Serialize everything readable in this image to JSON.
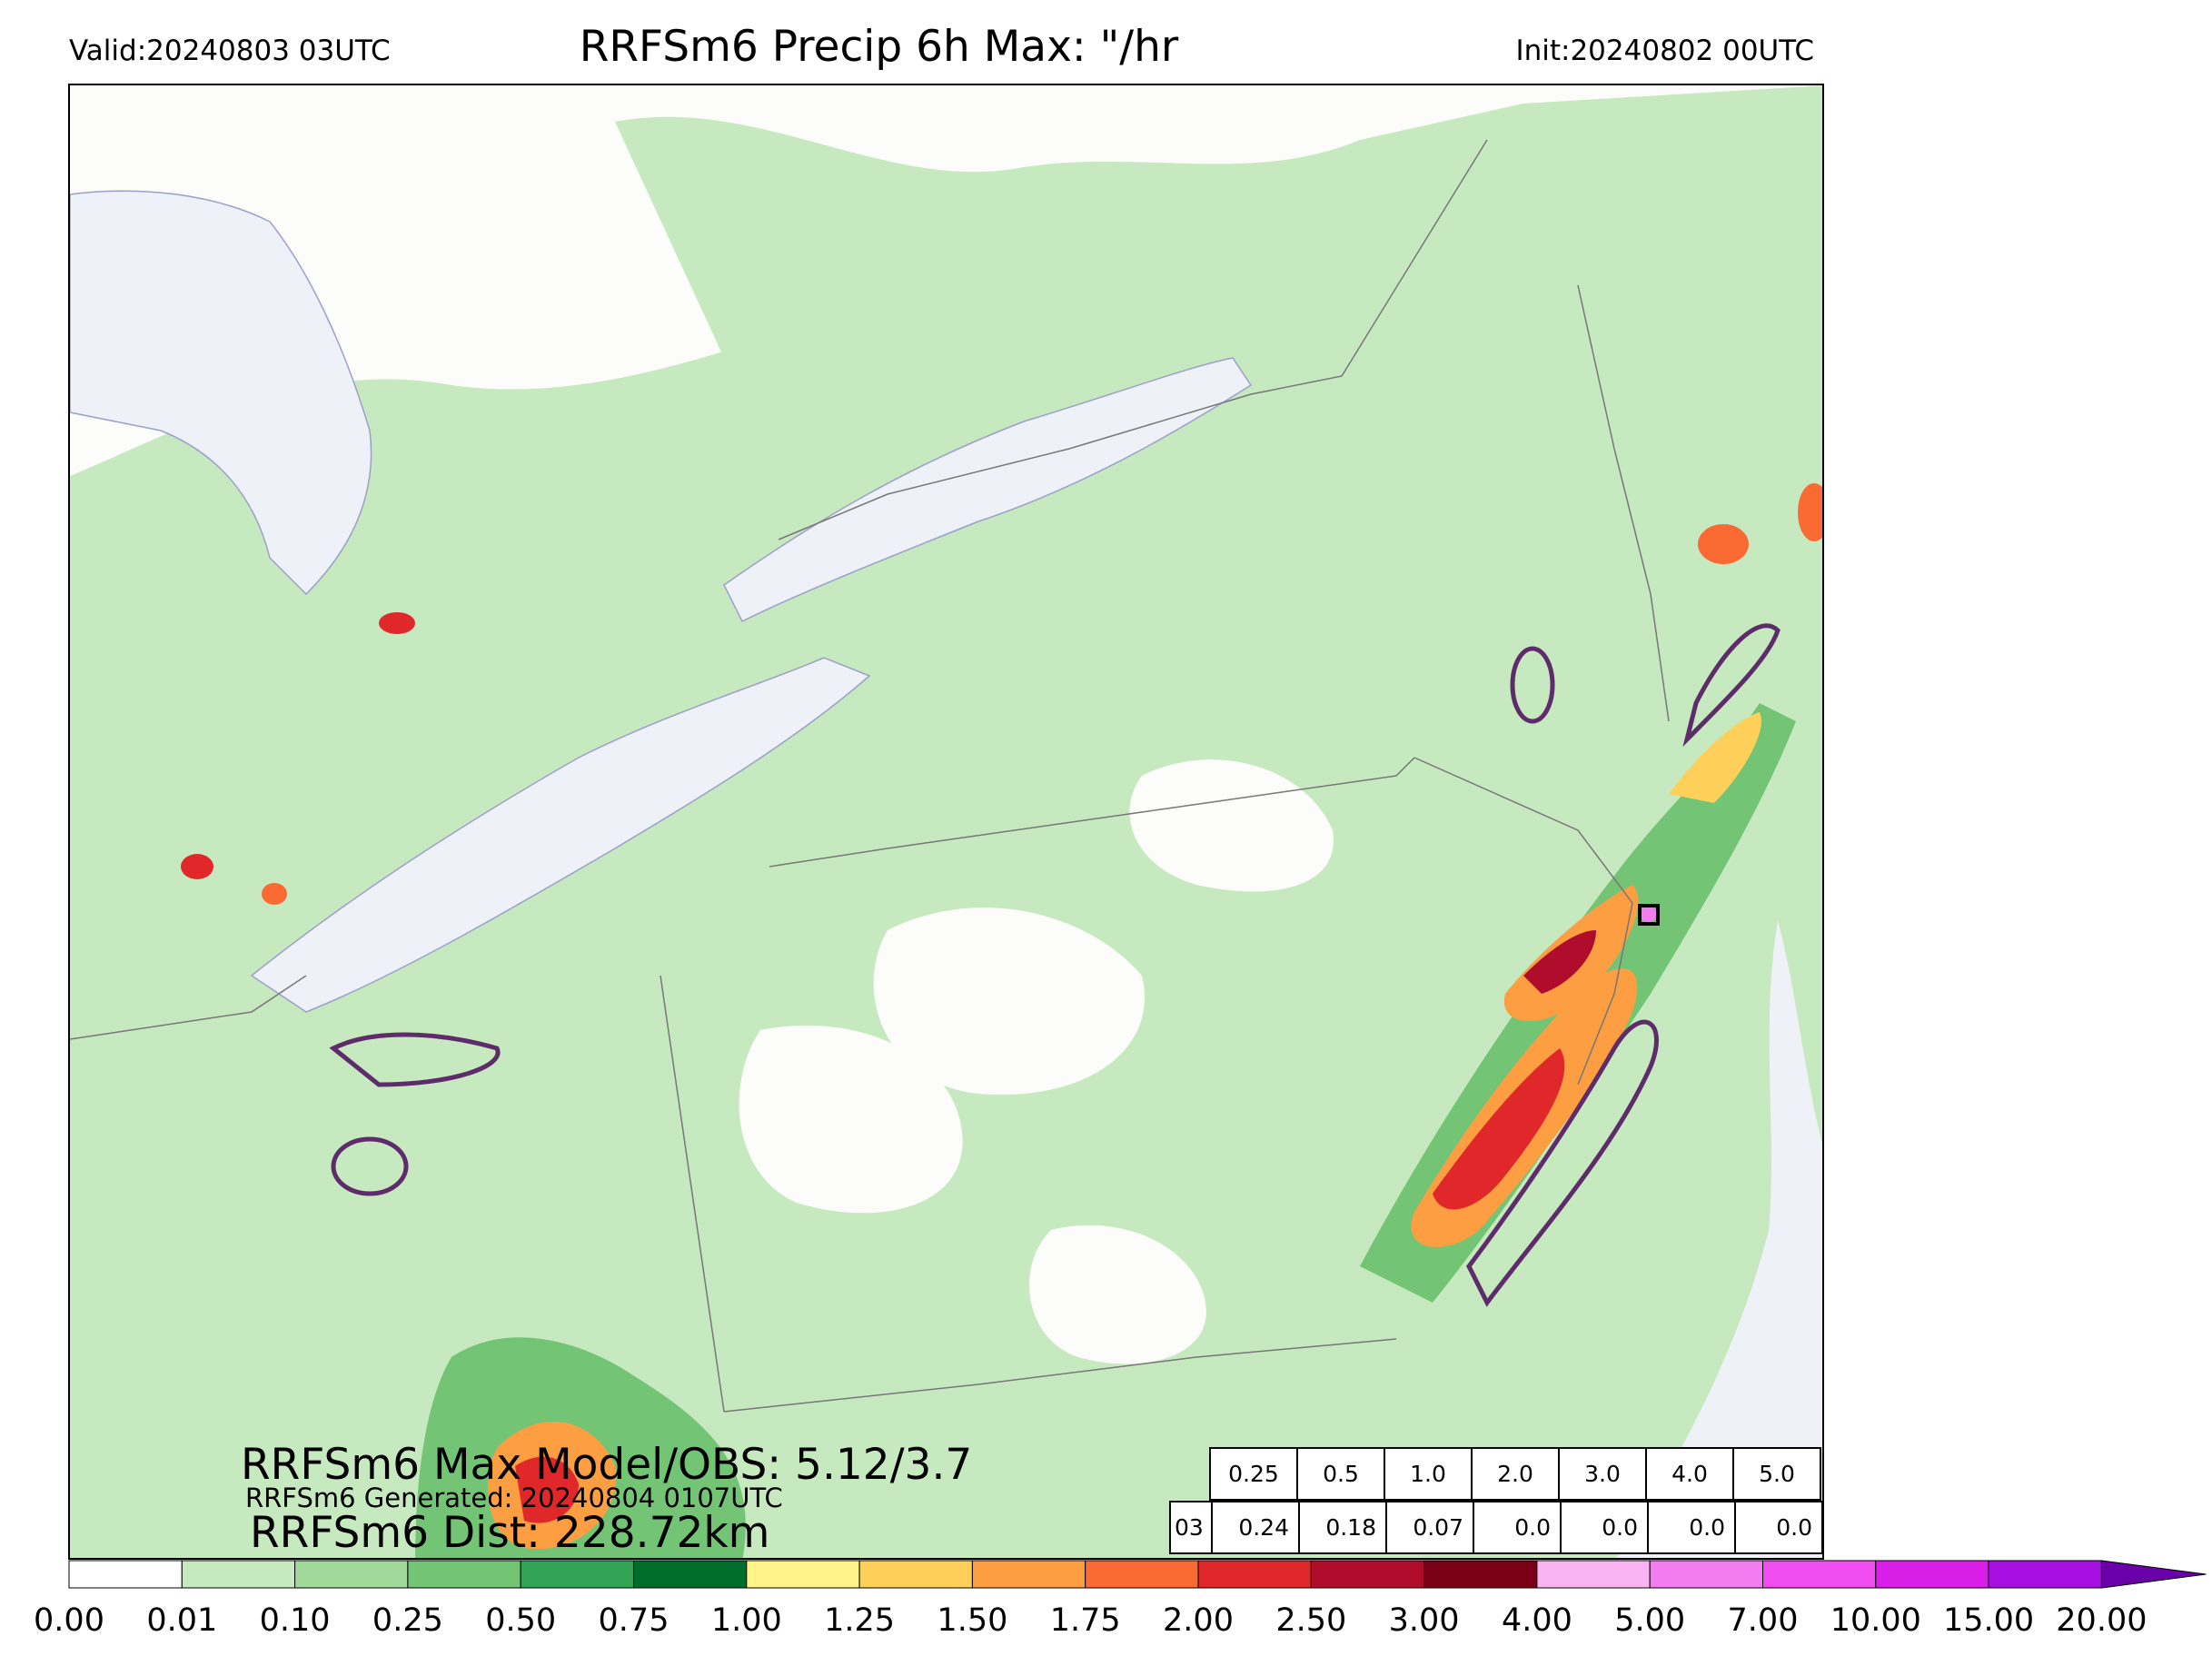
{
  "header": {
    "valid": "Valid:20240803 03UTC",
    "title": "RRFSm6 Precip 6h Max: \"/hr",
    "init": "Init:20240802 00UTC"
  },
  "overlay": {
    "max_model_obs": "RRFSm6 Max Model/OBS: 5.12/3.7",
    "generated": "RRFSm6 Generated: 20240804 0107UTC",
    "dist": "RRFSm6 Dist: 228.72km"
  },
  "stats_table": {
    "thresholds": [
      "0.25",
      "0.5",
      "1.0",
      "2.0",
      "3.0",
      "4.0",
      "5.0"
    ],
    "hour": "03",
    "values": [
      "0.24",
      "0.18",
      "0.07",
      "0.0",
      "0.0",
      "0.0",
      "0.0"
    ]
  },
  "colorbar": {
    "ticks": [
      "0.00",
      "0.01",
      "0.10",
      "0.25",
      "0.50",
      "0.75",
      "1.00",
      "1.25",
      "1.50",
      "1.75",
      "2.00",
      "2.50",
      "3.00",
      "4.00",
      "5.00",
      "7.00",
      "10.00",
      "15.00",
      "20.00"
    ],
    "colors": [
      "#ffffff",
      "#c7e9c0",
      "#a1d99b",
      "#74c476",
      "#31a354",
      "#006d2c",
      "#fff38a",
      "#fed05a",
      "#fd9e43",
      "#fc6a33",
      "#e0282a",
      "#b00d2d",
      "#7a0016",
      "#f7b4f0",
      "#f37cf0",
      "#f04df1",
      "#d91ee7",
      "#a50fe0"
    ],
    "extend": "max"
  },
  "map": {
    "layers": [
      "precip-shading",
      "observed-contour",
      "lakes",
      "state-borders"
    ],
    "water_color": "#eef2f8",
    "contour_color": "#5e2c6a"
  }
}
